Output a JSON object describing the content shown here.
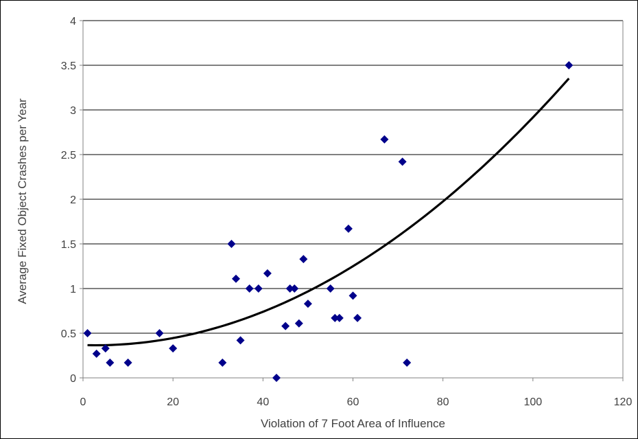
{
  "chart_data": {
    "type": "scatter",
    "xlabel": "Violation of 7 Foot Area of Influence",
    "ylabel": "Average Fixed Object Crashes per Year",
    "xlim": [
      0,
      120
    ],
    "ylim": [
      0,
      4
    ],
    "x_ticks": [
      "0",
      "20",
      "40",
      "60",
      "80",
      "100",
      "120"
    ],
    "y_ticks": [
      "0",
      "0.5",
      "1",
      "1.5",
      "2",
      "2.5",
      "3",
      "3.5",
      "4"
    ],
    "grid": "horizontal",
    "legend": "none",
    "marker_color": "#00008B",
    "trendline_color": "#000000",
    "points": [
      {
        "x": 1,
        "y": 0.5
      },
      {
        "x": 3,
        "y": 0.27
      },
      {
        "x": 5,
        "y": 0.33
      },
      {
        "x": 6,
        "y": 0.17
      },
      {
        "x": 10,
        "y": 0.17
      },
      {
        "x": 17,
        "y": 0.5
      },
      {
        "x": 20,
        "y": 0.33
      },
      {
        "x": 31,
        "y": 0.17
      },
      {
        "x": 33,
        "y": 1.5
      },
      {
        "x": 34,
        "y": 1.11
      },
      {
        "x": 35,
        "y": 0.42
      },
      {
        "x": 37,
        "y": 1.0
      },
      {
        "x": 39,
        "y": 1.0
      },
      {
        "x": 41,
        "y": 1.17
      },
      {
        "x": 43,
        "y": 0.0
      },
      {
        "x": 45,
        "y": 0.58
      },
      {
        "x": 46,
        "y": 1.0
      },
      {
        "x": 47,
        "y": 1.0
      },
      {
        "x": 48,
        "y": 0.61
      },
      {
        "x": 49,
        "y": 1.33
      },
      {
        "x": 50,
        "y": 0.83
      },
      {
        "x": 55,
        "y": 1.0
      },
      {
        "x": 56,
        "y": 0.67
      },
      {
        "x": 57,
        "y": 0.67
      },
      {
        "x": 59,
        "y": 1.67
      },
      {
        "x": 60,
        "y": 0.92
      },
      {
        "x": 61,
        "y": 0.67
      },
      {
        "x": 67,
        "y": 2.67
      },
      {
        "x": 71,
        "y": 2.42
      },
      {
        "x": 72,
        "y": 0.17
      },
      {
        "x": 108,
        "y": 3.5
      }
    ],
    "trendline": {
      "type": "polynomial",
      "x_range": [
        1,
        108
      ],
      "coefficients": [
        0.3669,
        -0.00145,
        0.0002694
      ]
    }
  }
}
